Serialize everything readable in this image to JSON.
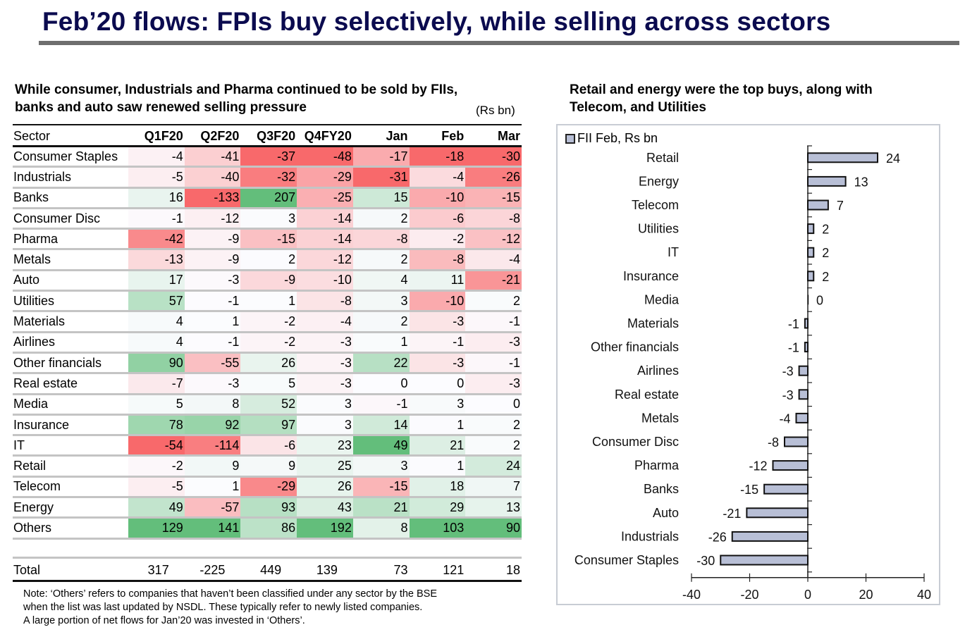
{
  "title": "Feb’20 flows: FPIs buy selectively, while selling across sectors",
  "left_panel": {
    "subtitle_line1": "While consumer, Industrials and Pharma continued to be sold by FIIs,",
    "subtitle_line2": "banks and auto saw renewed selling pressure",
    "units": "(Rs bn)",
    "note_line1": "Note: ‘Others’ refers to companies that haven’t been classified under any sector  by the BSE",
    "note_line2": "when the list was last updated by NSDL. These typically refer to newly listed companies.",
    "note_line3": "A large portion of net flows for Jan’20 was invested in ‘Others’."
  },
  "right_panel": {
    "subtitle_line1": "Retail and energy were the top buys, along with",
    "subtitle_line2": "Telecom, and Utilities"
  },
  "colors": {
    "title": "#0b0b4f",
    "heat_negative": "#f8696b",
    "heat_positive": "#63be7b",
    "heat_neutral": "#fcfcff",
    "bar_fill": "#b8bfd6",
    "bar_stroke": "#111111"
  },
  "chart_data": [
    {
      "type": "heatmap",
      "title": "While consumer, Industrials and Pharma continued to be sold by FIIs, banks and auto saw renewed selling pressure",
      "units": "Rs bn",
      "columns": [
        "Sector",
        "Q1F20",
        "Q2F20",
        "Q3F20",
        "Q4FY20",
        "Jan",
        "Feb",
        "Mar"
      ],
      "rows": [
        {
          "sector": "Consumer Staples",
          "values": [
            -4,
            -41,
            -37,
            -48,
            -17,
            -18,
            -30
          ]
        },
        {
          "sector": "Industrials",
          "values": [
            -5,
            -40,
            -32,
            -29,
            -31,
            -4,
            -26
          ]
        },
        {
          "sector": "Banks",
          "values": [
            16,
            -133,
            207,
            -25,
            15,
            -10,
            -15
          ]
        },
        {
          "sector": "Consumer Disc",
          "values": [
            -1,
            -12,
            3,
            -14,
            2,
            -6,
            -8
          ]
        },
        {
          "sector": "Pharma",
          "values": [
            -42,
            -9,
            -15,
            -14,
            -8,
            -2,
            -12
          ]
        },
        {
          "sector": "Metals",
          "values": [
            -13,
            -9,
            2,
            -12,
            2,
            -8,
            -4
          ]
        },
        {
          "sector": "Auto",
          "values": [
            17,
            -3,
            -9,
            -10,
            4,
            11,
            -21
          ]
        },
        {
          "sector": "Utilities",
          "values": [
            57,
            -1,
            1,
            -8,
            3,
            -10,
            2
          ]
        },
        {
          "sector": "Materials",
          "values": [
            4,
            1,
            -2,
            -4,
            2,
            -3,
            -1
          ]
        },
        {
          "sector": "Airlines",
          "values": [
            4,
            -1,
            -2,
            -3,
            1,
            -1,
            -3
          ]
        },
        {
          "sector": "Other financials",
          "values": [
            90,
            -55,
            26,
            -3,
            22,
            -3,
            -1
          ]
        },
        {
          "sector": "Real estate",
          "values": [
            -7,
            -3,
            5,
            -3,
            0,
            0,
            -3
          ]
        },
        {
          "sector": "Media",
          "values": [
            5,
            8,
            52,
            3,
            -1,
            3,
            0
          ]
        },
        {
          "sector": "Insurance",
          "values": [
            78,
            92,
            97,
            3,
            14,
            1,
            2
          ]
        },
        {
          "sector": "IT",
          "values": [
            -54,
            -114,
            -6,
            23,
            49,
            21,
            2
          ]
        },
        {
          "sector": "Retail",
          "values": [
            -2,
            9,
            9,
            25,
            3,
            1,
            24
          ]
        },
        {
          "sector": "Telecom",
          "values": [
            -5,
            1,
            -29,
            26,
            -15,
            18,
            7
          ]
        },
        {
          "sector": "Energy",
          "values": [
            49,
            -57,
            93,
            43,
            21,
            29,
            13
          ]
        },
        {
          "sector": "Others",
          "values": [
            129,
            141,
            86,
            192,
            8,
            103,
            90
          ]
        }
      ],
      "total": {
        "label": "Total",
        "values": [
          317,
          -225,
          449,
          139,
          73,
          121,
          18
        ]
      }
    },
    {
      "type": "bar",
      "orientation": "horizontal",
      "title": "Retail and energy were the top buys, along with Telecom, and Utilities",
      "legend": {
        "entries": [
          "FII Feb, Rs bn"
        ],
        "placement": "top-left"
      },
      "categories": [
        "Retail",
        "Energy",
        "Telecom",
        "Utilities",
        "IT",
        "Insurance",
        "Media",
        "Materials",
        "Other financials",
        "Airlines",
        "Real estate",
        "Metals",
        "Consumer Disc",
        "Pharma",
        "Banks",
        "Auto",
        "Industrials",
        "Consumer Staples"
      ],
      "series": [
        {
          "name": "FII Feb, Rs bn",
          "values": [
            24,
            13,
            7,
            2,
            2,
            2,
            0,
            -1,
            -1,
            -3,
            -3,
            -4,
            -8,
            -12,
            -15,
            -21,
            -26,
            -30
          ]
        }
      ],
      "xlim": [
        -40,
        40
      ],
      "xticks": [
        -40,
        -20,
        0,
        20,
        40
      ],
      "xlabel": "",
      "ylabel": "",
      "grid": false
    }
  ]
}
